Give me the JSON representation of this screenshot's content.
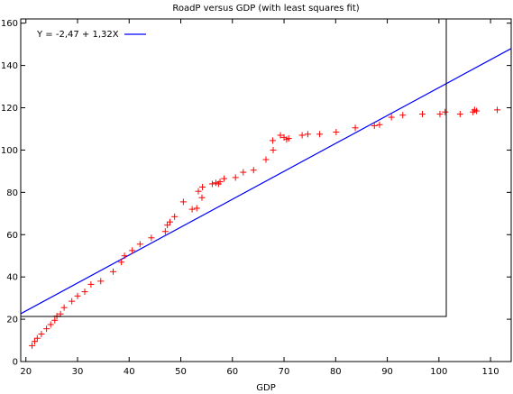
{
  "chart_data": {
    "type": "scatter",
    "title": "RoadP versus GDP (with least squares fit)",
    "xlabel": "GDP",
    "ylabel": "",
    "xlim": [
      19,
      114
    ],
    "ylim": [
      0,
      162
    ],
    "xticks": [
      20,
      30,
      40,
      50,
      60,
      70,
      80,
      90,
      100,
      110
    ],
    "yticks": [
      0,
      20,
      40,
      60,
      80,
      100,
      120,
      140,
      160
    ],
    "grid": false,
    "legend_position": "top-left",
    "series": [
      {
        "type": "scatter",
        "marker": "+",
        "color": "#ff0000",
        "points": [
          [
            21.2,
            7.5
          ],
          [
            21.7,
            9.5
          ],
          [
            22.2,
            11
          ],
          [
            23,
            13
          ],
          [
            24,
            15.5
          ],
          [
            24.8,
            17.5
          ],
          [
            25.6,
            19.5
          ],
          [
            26,
            21.5
          ],
          [
            26.7,
            22.5
          ],
          [
            27.4,
            25.5
          ],
          [
            28.9,
            28.5
          ],
          [
            30,
            31
          ],
          [
            31.4,
            33
          ],
          [
            32.6,
            36.5
          ],
          [
            34.5,
            38
          ],
          [
            36.9,
            42.5
          ],
          [
            38.5,
            47
          ],
          [
            39.1,
            50
          ],
          [
            40.6,
            52.5
          ],
          [
            42.1,
            55.5
          ],
          [
            44.3,
            58.5
          ],
          [
            47,
            61.5
          ],
          [
            47.4,
            64.5
          ],
          [
            47.9,
            66
          ],
          [
            48.8,
            68.5
          ],
          [
            50.5,
            75.5
          ],
          [
            52.2,
            72
          ],
          [
            53.1,
            72.5
          ],
          [
            53.4,
            80.5
          ],
          [
            54.1,
            77.5
          ],
          [
            54.2,
            82.5
          ],
          [
            56.1,
            84
          ],
          [
            56.8,
            84.5
          ],
          [
            57.3,
            84
          ],
          [
            57.6,
            85
          ],
          [
            58.4,
            86.5
          ],
          [
            60.6,
            87
          ],
          [
            62.1,
            89.5
          ],
          [
            64.1,
            90.5
          ],
          [
            66.5,
            95.5
          ],
          [
            67.9,
            100
          ],
          [
            67.8,
            104.5
          ],
          [
            69.3,
            107
          ],
          [
            70,
            106
          ],
          [
            70.5,
            105
          ],
          [
            70.9,
            105.5
          ],
          [
            73.5,
            107
          ],
          [
            74.6,
            107.5
          ],
          [
            76.9,
            107.5
          ],
          [
            80.1,
            108.5
          ],
          [
            83.8,
            110.5
          ],
          [
            87.5,
            111.5
          ],
          [
            88.5,
            112
          ],
          [
            90.8,
            115.5
          ],
          [
            93,
            116.5
          ],
          [
            96.8,
            117
          ],
          [
            100.2,
            117
          ],
          [
            101.2,
            118
          ],
          [
            104.1,
            117
          ],
          [
            106.6,
            118
          ],
          [
            106.9,
            119
          ],
          [
            107.3,
            118.5
          ],
          [
            111.3,
            119
          ]
        ]
      },
      {
        "type": "line",
        "name": "Y = -2,47 + 1,32X",
        "color": "#0000ff",
        "intercept": -2.47,
        "slope": 1.32
      }
    ]
  }
}
